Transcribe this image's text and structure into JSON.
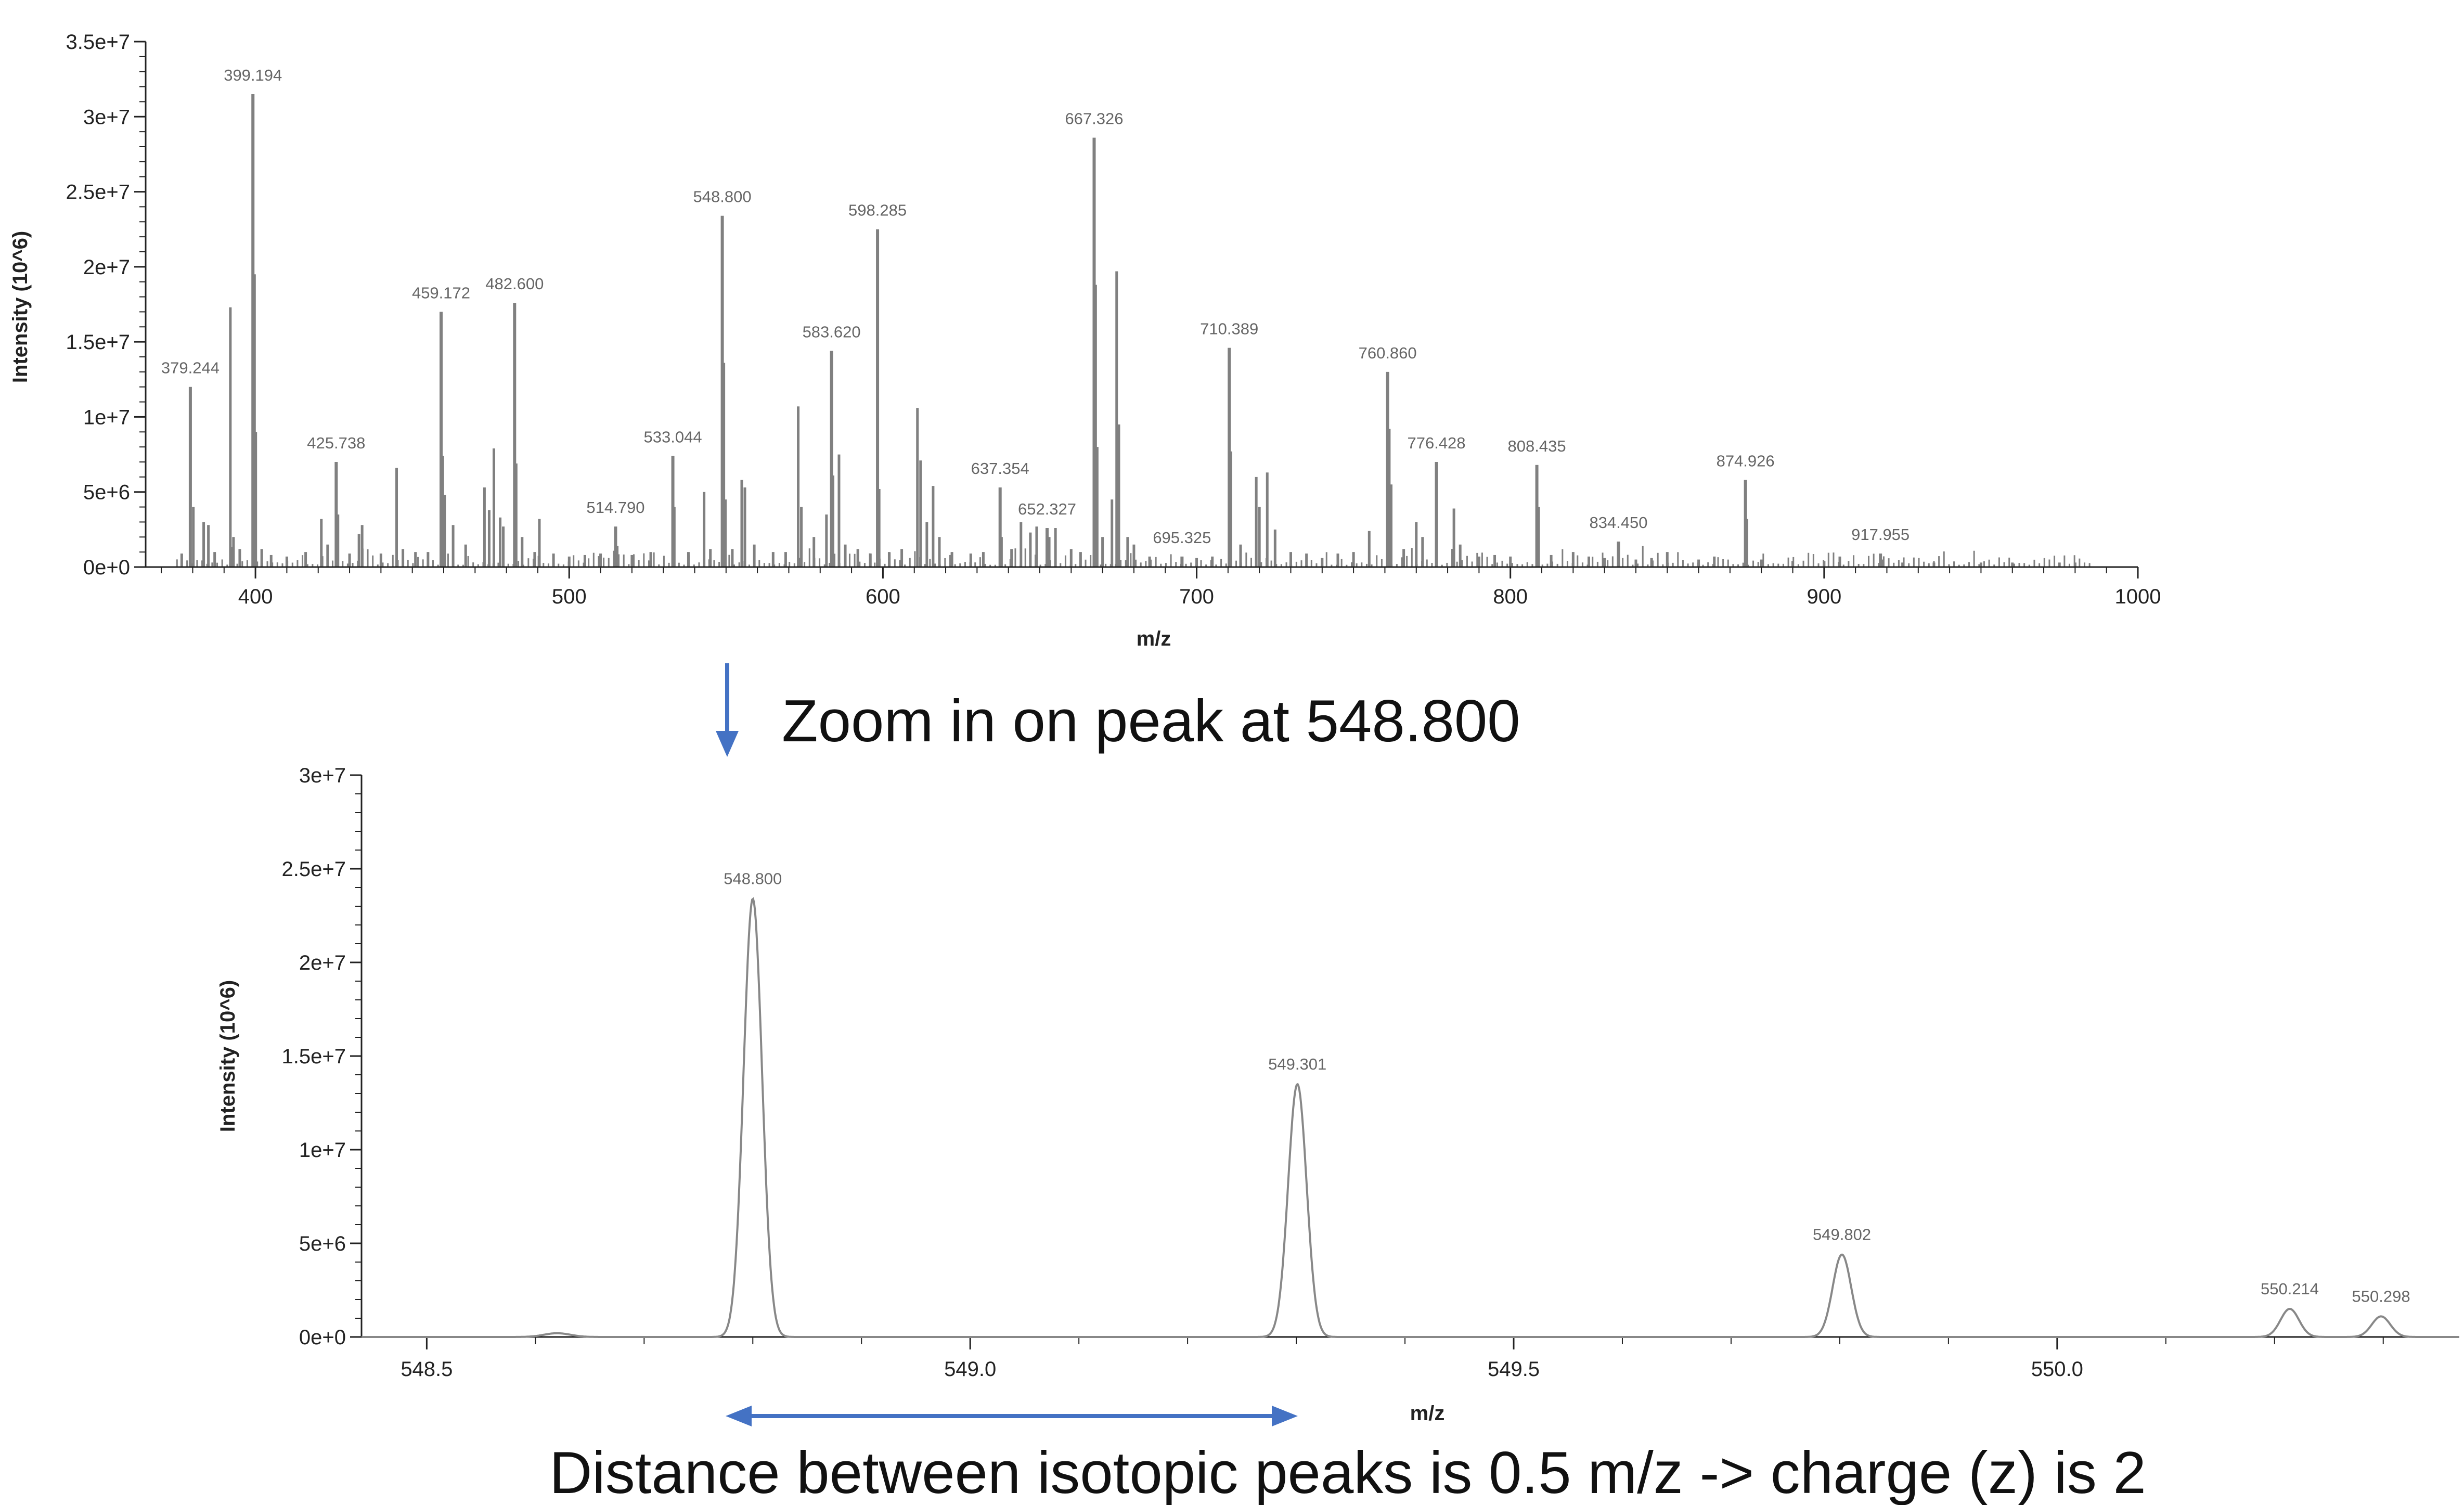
{
  "annotations": {
    "zoom_caption": "Zoom in on peak at 548.800",
    "distance_caption": "Distance between isotopic peaks is 0.5 m/z -> charge (z) is 2",
    "arrow_color": "#4472C4"
  },
  "chart_data": [
    {
      "type": "bar",
      "name": "full-spectrum",
      "xlabel": "m/z",
      "ylabel": "Intensity (10^6)",
      "xlim": [
        365,
        1000
      ],
      "ylim": [
        0,
        35000000
      ],
      "x_ticks": [
        400,
        500,
        600,
        700,
        800,
        900,
        1000
      ],
      "x_tick_labels": [
        "400",
        "500",
        "600",
        "700",
        "800",
        "900",
        "1000"
      ],
      "y_ticks": [
        0,
        5000000,
        10000000,
        15000000,
        20000000,
        25000000,
        30000000,
        35000000
      ],
      "y_tick_labels": [
        "0e+0",
        "5e+6",
        "1e+7",
        "1.5e+7",
        "2e+7",
        "2.5e+7",
        "3e+7",
        "3.5e+7"
      ],
      "bar_color": "#808080",
      "labeled_peaks": [
        {
          "x": 379.244,
          "y": 12000000,
          "label": "379.244"
        },
        {
          "x": 399.194,
          "y": 31500000,
          "label": "399.194"
        },
        {
          "x": 425.738,
          "y": 7000000,
          "label": "425.738"
        },
        {
          "x": 459.172,
          "y": 17000000,
          "label": "459.172"
        },
        {
          "x": 482.6,
          "y": 17600000,
          "label": "482.600"
        },
        {
          "x": 514.79,
          "y": 2700000,
          "label": "514.790"
        },
        {
          "x": 533.044,
          "y": 7400000,
          "label": "533.044"
        },
        {
          "x": 548.8,
          "y": 23400000,
          "label": "548.800"
        },
        {
          "x": 583.62,
          "y": 14400000,
          "label": "583.620"
        },
        {
          "x": 598.285,
          "y": 22500000,
          "label": "598.285"
        },
        {
          "x": 637.354,
          "y": 5300000,
          "label": "637.354"
        },
        {
          "x": 652.327,
          "y": 2600000,
          "label": "652.327"
        },
        {
          "x": 667.326,
          "y": 28600000,
          "label": "667.326"
        },
        {
          "x": 695.325,
          "y": 700000,
          "label": "695.325"
        },
        {
          "x": 710.389,
          "y": 14600000,
          "label": "710.389"
        },
        {
          "x": 760.86,
          "y": 13000000,
          "label": "760.860"
        },
        {
          "x": 776.428,
          "y": 7000000,
          "label": "776.428"
        },
        {
          "x": 808.435,
          "y": 6800000,
          "label": "808.435"
        },
        {
          "x": 834.45,
          "y": 1700000,
          "label": "834.450"
        },
        {
          "x": 874.926,
          "y": 5800000,
          "label": "874.926"
        },
        {
          "x": 917.955,
          "y": 900000,
          "label": "917.955"
        }
      ],
      "other_peaks": [
        {
          "x": 376.5,
          "y": 900000
        },
        {
          "x": 380.2,
          "y": 4000000
        },
        {
          "x": 383.5,
          "y": 3000000
        },
        {
          "x": 385.0,
          "y": 2800000
        },
        {
          "x": 387.0,
          "y": 1000000
        },
        {
          "x": 392.0,
          "y": 17300000
        },
        {
          "x": 393.0,
          "y": 2000000
        },
        {
          "x": 395.0,
          "y": 1200000
        },
        {
          "x": 399.7,
          "y": 19500000
        },
        {
          "x": 400.1,
          "y": 9000000
        },
        {
          "x": 402.0,
          "y": 1200000
        },
        {
          "x": 405.0,
          "y": 800000
        },
        {
          "x": 410.0,
          "y": 700000
        },
        {
          "x": 416.0,
          "y": 1000000
        },
        {
          "x": 421.0,
          "y": 3200000
        },
        {
          "x": 423.0,
          "y": 1500000
        },
        {
          "x": 426.3,
          "y": 3500000
        },
        {
          "x": 430.0,
          "y": 900000
        },
        {
          "x": 433.0,
          "y": 2200000
        },
        {
          "x": 434.0,
          "y": 2800000
        },
        {
          "x": 440.0,
          "y": 900000
        },
        {
          "x": 445.0,
          "y": 6600000
        },
        {
          "x": 447.0,
          "y": 1200000
        },
        {
          "x": 451.0,
          "y": 1000000
        },
        {
          "x": 455.0,
          "y": 1000000
        },
        {
          "x": 459.7,
          "y": 7400000
        },
        {
          "x": 460.3,
          "y": 4800000
        },
        {
          "x": 463.0,
          "y": 2800000
        },
        {
          "x": 467.0,
          "y": 1500000
        },
        {
          "x": 473.0,
          "y": 5300000
        },
        {
          "x": 474.5,
          "y": 3800000
        },
        {
          "x": 476.0,
          "y": 7900000
        },
        {
          "x": 478.0,
          "y": 3300000
        },
        {
          "x": 479.0,
          "y": 2700000
        },
        {
          "x": 483.1,
          "y": 6900000
        },
        {
          "x": 485.0,
          "y": 2000000
        },
        {
          "x": 489.0,
          "y": 1000000
        },
        {
          "x": 490.5,
          "y": 3200000
        },
        {
          "x": 495.0,
          "y": 900000
        },
        {
          "x": 500.0,
          "y": 700000
        },
        {
          "x": 505.0,
          "y": 800000
        },
        {
          "x": 510.0,
          "y": 900000
        },
        {
          "x": 515.3,
          "y": 1400000
        },
        {
          "x": 520.0,
          "y": 800000
        },
        {
          "x": 526.0,
          "y": 1000000
        },
        {
          "x": 533.5,
          "y": 4000000
        },
        {
          "x": 538.0,
          "y": 1000000
        },
        {
          "x": 543.0,
          "y": 5000000
        },
        {
          "x": 545.0,
          "y": 1200000
        },
        {
          "x": 549.3,
          "y": 13600000
        },
        {
          "x": 549.8,
          "y": 4500000
        },
        {
          "x": 552.0,
          "y": 1200000
        },
        {
          "x": 555.0,
          "y": 5800000
        },
        {
          "x": 556.0,
          "y": 5300000
        },
        {
          "x": 559.0,
          "y": 1500000
        },
        {
          "x": 565.0,
          "y": 1000000
        },
        {
          "x": 569.0,
          "y": 1000000
        },
        {
          "x": 573.0,
          "y": 10700000
        },
        {
          "x": 574.0,
          "y": 4000000
        },
        {
          "x": 578.0,
          "y": 2000000
        },
        {
          "x": 582.0,
          "y": 3500000
        },
        {
          "x": 584.1,
          "y": 6100000
        },
        {
          "x": 586.0,
          "y": 7500000
        },
        {
          "x": 588.0,
          "y": 1500000
        },
        {
          "x": 592.0,
          "y": 1200000
        },
        {
          "x": 596.0,
          "y": 900000
        },
        {
          "x": 598.8,
          "y": 5200000
        },
        {
          "x": 602.0,
          "y": 1000000
        },
        {
          "x": 606.0,
          "y": 1200000
        },
        {
          "x": 611.0,
          "y": 10600000
        },
        {
          "x": 612.0,
          "y": 7100000
        },
        {
          "x": 614.0,
          "y": 3000000
        },
        {
          "x": 616.0,
          "y": 5400000
        },
        {
          "x": 618.0,
          "y": 2000000
        },
        {
          "x": 622.0,
          "y": 1000000
        },
        {
          "x": 628.0,
          "y": 900000
        },
        {
          "x": 632.0,
          "y": 1000000
        },
        {
          "x": 637.8,
          "y": 2000000
        },
        {
          "x": 641.0,
          "y": 1200000
        },
        {
          "x": 644.0,
          "y": 3000000
        },
        {
          "x": 647.0,
          "y": 2300000
        },
        {
          "x": 649.0,
          "y": 2700000
        },
        {
          "x": 653.0,
          "y": 2000000
        },
        {
          "x": 655.0,
          "y": 2600000
        },
        {
          "x": 660.0,
          "y": 1200000
        },
        {
          "x": 663.0,
          "y": 1000000
        },
        {
          "x": 667.8,
          "y": 18800000
        },
        {
          "x": 668.3,
          "y": 8000000
        },
        {
          "x": 670.0,
          "y": 2000000
        },
        {
          "x": 673.0,
          "y": 4500000
        },
        {
          "x": 674.5,
          "y": 19700000
        },
        {
          "x": 675.2,
          "y": 9500000
        },
        {
          "x": 678.0,
          "y": 2000000
        },
        {
          "x": 680.0,
          "y": 1500000
        },
        {
          "x": 685.0,
          "y": 700000
        },
        {
          "x": 700.0,
          "y": 600000
        },
        {
          "x": 705.0,
          "y": 700000
        },
        {
          "x": 710.9,
          "y": 7700000
        },
        {
          "x": 714.0,
          "y": 1500000
        },
        {
          "x": 719.0,
          "y": 6000000
        },
        {
          "x": 720.0,
          "y": 4000000
        },
        {
          "x": 722.5,
          "y": 6300000
        },
        {
          "x": 725.0,
          "y": 2500000
        },
        {
          "x": 730.0,
          "y": 1000000
        },
        {
          "x": 735.0,
          "y": 900000
        },
        {
          "x": 740.0,
          "y": 600000
        },
        {
          "x": 745.0,
          "y": 900000
        },
        {
          "x": 750.0,
          "y": 1000000
        },
        {
          "x": 755.0,
          "y": 2400000
        },
        {
          "x": 761.4,
          "y": 9200000
        },
        {
          "x": 762.0,
          "y": 5500000
        },
        {
          "x": 766.0,
          "y": 1200000
        },
        {
          "x": 770.0,
          "y": 3000000
        },
        {
          "x": 772.0,
          "y": 2000000
        },
        {
          "x": 782.0,
          "y": 3900000
        },
        {
          "x": 784.0,
          "y": 1500000
        },
        {
          "x": 790.0,
          "y": 700000
        },
        {
          "x": 795.0,
          "y": 800000
        },
        {
          "x": 800.0,
          "y": 700000
        },
        {
          "x": 809.0,
          "y": 4000000
        },
        {
          "x": 813.0,
          "y": 800000
        },
        {
          "x": 820.0,
          "y": 1000000
        },
        {
          "x": 825.0,
          "y": 700000
        },
        {
          "x": 830.0,
          "y": 600000
        },
        {
          "x": 840.0,
          "y": 500000
        },
        {
          "x": 845.0,
          "y": 600000
        },
        {
          "x": 850.0,
          "y": 1000000
        },
        {
          "x": 860.0,
          "y": 500000
        },
        {
          "x": 865.0,
          "y": 700000
        },
        {
          "x": 875.4,
          "y": 3200000
        },
        {
          "x": 880.0,
          "y": 500000
        },
        {
          "x": 890.0,
          "y": 400000
        },
        {
          "x": 900.0,
          "y": 400000
        },
        {
          "x": 905.0,
          "y": 700000
        },
        {
          "x": 918.5,
          "y": 500000
        },
        {
          "x": 925.0,
          "y": 300000
        },
        {
          "x": 935.0,
          "y": 300000
        },
        {
          "x": 950.0,
          "y": 300000
        },
        {
          "x": 960.0,
          "y": 300000
        },
        {
          "x": 975.0,
          "y": 300000
        },
        {
          "x": 980.0,
          "y": 300000
        }
      ]
    },
    {
      "type": "line",
      "name": "zoomed-spectrum",
      "xlabel": "m/z",
      "ylabel": "Intensity (10^6)",
      "xlim": [
        548.44,
        550.37
      ],
      "ylim": [
        0,
        30000000
      ],
      "x_ticks": [
        548.5,
        549.0,
        549.5,
        550.0
      ],
      "x_tick_labels": [
        "548.5",
        "549.0",
        "549.5",
        "550.0"
      ],
      "y_ticks": [
        0,
        5000000,
        10000000,
        15000000,
        20000000,
        25000000,
        30000000
      ],
      "y_tick_labels": [
        "0e+0",
        "5e+6",
        "1e+7",
        "1.5e+7",
        "2e+7",
        "2.5e+7",
        "3e+7"
      ],
      "line_color": "#888888",
      "peaks": [
        {
          "x": 548.62,
          "y": 200000,
          "width": 0.012,
          "label": ""
        },
        {
          "x": 548.8,
          "y": 23400000,
          "width": 0.0085,
          "label": "548.800"
        },
        {
          "x": 549.301,
          "y": 13500000,
          "width": 0.0085,
          "label": "549.301"
        },
        {
          "x": 549.802,
          "y": 4400000,
          "width": 0.0085,
          "label": "549.802"
        },
        {
          "x": 550.214,
          "y": 1500000,
          "width": 0.0085,
          "label": "550.214"
        },
        {
          "x": 550.298,
          "y": 1100000,
          "width": 0.0085,
          "label": "550.298"
        }
      ]
    }
  ]
}
